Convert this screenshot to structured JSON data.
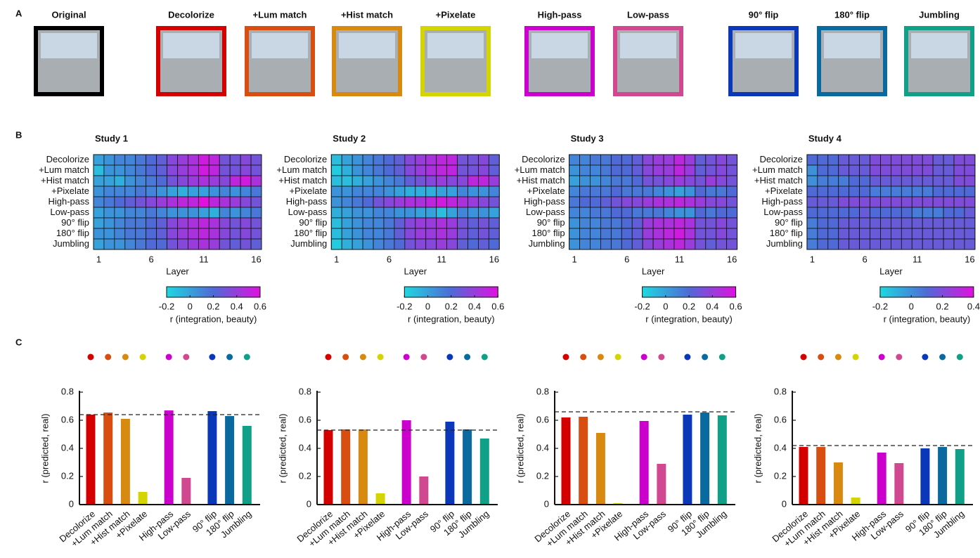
{
  "panel_labels": [
    "A",
    "B",
    "C"
  ],
  "images": [
    {
      "label": "Original",
      "color": "#000000"
    },
    {
      "label": "Decolorize",
      "color": "#d40000"
    },
    {
      "label": "+Lum match",
      "color": "#d84e10"
    },
    {
      "label": "+Hist match",
      "color": "#d88a10"
    },
    {
      "label": "+Pixelate",
      "color": "#d4d400"
    },
    {
      "label": "High-pass",
      "color": "#cc00cc"
    },
    {
      "label": "Low-pass",
      "color": "#d04890"
    },
    {
      "label": "90° flip",
      "color": "#0a38b8"
    },
    {
      "label": "180° flip",
      "color": "#0a6aa0"
    },
    {
      "label": "Jumbling",
      "color": "#10a088"
    }
  ],
  "chart_data": [
    {
      "type": "heatmap",
      "title": "Study 1",
      "xlabel": "Layer",
      "colorbar_label": "r (integration, beauty)",
      "categories": [
        "Decolorize",
        "+Lum match",
        "+Hist match",
        "+Pixelate",
        "High-pass",
        "Low-pass",
        "90° flip",
        "180° flip",
        "Jumbling"
      ],
      "x": [
        1,
        2,
        3,
        4,
        5,
        6,
        7,
        8,
        9,
        10,
        11,
        12,
        13,
        14,
        15,
        16
      ],
      "xlim": [
        0.5,
        16.5
      ],
      "xticks": [
        1,
        6,
        11,
        16
      ],
      "zlim": [
        -0.2,
        0.6
      ],
      "zticks": [
        -0.2,
        0,
        0.2,
        0.4,
        0.6
      ],
      "colormap": [
        "#1ed8e0",
        "#4f6ad6",
        "#e010e0"
      ],
      "values": [
        [
          0,
          0.05,
          0.1,
          0.1,
          0.15,
          0.2,
          0.25,
          0.35,
          0.4,
          0.45,
          0.55,
          0.5,
          0.3,
          0.3,
          0.35,
          0.3
        ],
        [
          -0.1,
          0.05,
          0.05,
          0.1,
          0.15,
          0.2,
          0.25,
          0.35,
          0.4,
          0.45,
          0.55,
          0.5,
          0.3,
          0.3,
          0.35,
          0.3
        ],
        [
          0,
          0,
          -0.05,
          0.05,
          0.1,
          0.15,
          0.2,
          0.3,
          0.35,
          0.4,
          0.45,
          0.4,
          0.35,
          0.5,
          0.55,
          0.45
        ],
        [
          0.05,
          0.1,
          0.1,
          0.1,
          0.15,
          0.1,
          0.05,
          0,
          -0.05,
          0,
          0,
          0.05,
          0.1,
          0.05,
          0.1,
          0.15
        ],
        [
          0.1,
          0.15,
          0.2,
          0.25,
          0.3,
          0.35,
          0.4,
          0.45,
          0.5,
          0.5,
          0.6,
          0.5,
          0.45,
          0.4,
          0.35,
          0.3
        ],
        [
          0,
          0.05,
          0.05,
          0.1,
          0.1,
          0.15,
          0.1,
          0.05,
          0.05,
          0.05,
          0,
          -0.05,
          0.1,
          0.05,
          0.1,
          0.15
        ],
        [
          0,
          0.05,
          0.1,
          0.15,
          0.15,
          0.2,
          0.25,
          0.35,
          0.4,
          0.45,
          0.5,
          0.45,
          0.35,
          0.3,
          0.35,
          0.3
        ],
        [
          0.05,
          0.05,
          0.1,
          0.15,
          0.15,
          0.2,
          0.25,
          0.35,
          0.4,
          0.45,
          0.5,
          0.45,
          0.35,
          0.3,
          0.35,
          0.3
        ],
        [
          0,
          0.05,
          0.05,
          0.1,
          0.15,
          0.2,
          0.2,
          0.3,
          0.35,
          0.4,
          0.45,
          0.4,
          0.3,
          0.25,
          0.3,
          0.25
        ]
      ]
    },
    {
      "type": "heatmap",
      "title": "Study 2",
      "xlabel": "Layer",
      "colorbar_label": "r (integration, beauty)",
      "categories": [
        "Decolorize",
        "+Lum match",
        "+Hist match",
        "+Pixelate",
        "High-pass",
        "Low-pass",
        "90° flip",
        "180° flip",
        "Jumbling"
      ],
      "x": [
        1,
        2,
        3,
        4,
        5,
        6,
        7,
        8,
        9,
        10,
        11,
        12,
        13,
        14,
        15,
        16
      ],
      "xlim": [
        0.5,
        16.5
      ],
      "xticks": [
        1,
        6,
        11,
        16
      ],
      "zlim": [
        -0.2,
        0.6
      ],
      "zticks": [
        -0.2,
        0,
        0.2,
        0.4,
        0.6
      ],
      "colormap": [
        "#1ed8e0",
        "#4f6ad6",
        "#e010e0"
      ],
      "values": [
        [
          -0.1,
          0,
          0.05,
          0.1,
          0.15,
          0.2,
          0.25,
          0.35,
          0.4,
          0.45,
          0.5,
          0.5,
          0.3,
          0.3,
          0.35,
          0.25
        ],
        [
          -0.15,
          -0.05,
          0.05,
          0.1,
          0.15,
          0.2,
          0.25,
          0.35,
          0.4,
          0.45,
          0.5,
          0.5,
          0.3,
          0.3,
          0.35,
          0.25
        ],
        [
          -0.1,
          -0.1,
          -0.05,
          0,
          0.05,
          0.1,
          0.15,
          0.25,
          0.3,
          0.35,
          0.4,
          0.35,
          0.35,
          0.5,
          0.5,
          0.4
        ],
        [
          0.05,
          0.05,
          0.1,
          0.1,
          0.1,
          0.05,
          0,
          -0.05,
          -0.05,
          -0.05,
          0,
          0,
          0.1,
          0.05,
          0.05,
          0.1
        ],
        [
          0.05,
          0.1,
          0.15,
          0.2,
          0.3,
          0.35,
          0.4,
          0.45,
          0.45,
          0.5,
          0.55,
          0.5,
          0.45,
          0.4,
          0.35,
          0.3
        ],
        [
          -0.05,
          0,
          0.05,
          0.05,
          0.1,
          0.1,
          0.05,
          0.05,
          0,
          0,
          -0.1,
          0,
          0.1,
          0.05,
          0.05,
          0
        ],
        [
          -0.1,
          0,
          0.05,
          0.1,
          0.1,
          0.15,
          0.25,
          0.35,
          0.4,
          0.4,
          0.45,
          0.4,
          0.3,
          0.25,
          0.3,
          0.25
        ],
        [
          -0.1,
          0,
          0.05,
          0.1,
          0.1,
          0.15,
          0.25,
          0.35,
          0.4,
          0.4,
          0.45,
          0.4,
          0.3,
          0.25,
          0.3,
          0.25
        ],
        [
          -0.15,
          -0.05,
          0,
          0.05,
          0.1,
          0.15,
          0.2,
          0.3,
          0.35,
          0.35,
          0.4,
          0.35,
          0.25,
          0.2,
          0.25,
          0.2
        ]
      ]
    },
    {
      "type": "heatmap",
      "title": "Study 3",
      "xlabel": "Layer",
      "colorbar_label": "r (integration, beauty)",
      "categories": [
        "Decolorize",
        "+Lum match",
        "+Hist match",
        "+Pixelate",
        "High-pass",
        "Low-pass",
        "90° flip",
        "180° flip",
        "Jumbling"
      ],
      "x": [
        1,
        2,
        3,
        4,
        5,
        6,
        7,
        8,
        9,
        10,
        11,
        12,
        13,
        14,
        15,
        16
      ],
      "xlim": [
        0.5,
        16.5
      ],
      "xticks": [
        1,
        6,
        11,
        16
      ],
      "zlim": [
        -0.2,
        0.6
      ],
      "zticks": [
        -0.2,
        0,
        0.2,
        0.4,
        0.6
      ],
      "colormap": [
        "#1ed8e0",
        "#4f6ad6",
        "#e010e0"
      ],
      "values": [
        [
          0.1,
          0.1,
          0.15,
          0.15,
          0.2,
          0.2,
          0.25,
          0.35,
          0.4,
          0.4,
          0.5,
          0.4,
          0.25,
          0.3,
          0.35,
          0.3
        ],
        [
          0.05,
          0.1,
          0.1,
          0.15,
          0.2,
          0.2,
          0.25,
          0.35,
          0.4,
          0.4,
          0.5,
          0.4,
          0.25,
          0.3,
          0.35,
          0.3
        ],
        [
          0,
          0.05,
          0.05,
          0.1,
          0.15,
          0.15,
          0.2,
          0.3,
          0.3,
          0.35,
          0.4,
          0.35,
          0.3,
          0.4,
          0.35,
          0.3
        ],
        [
          0.1,
          0.15,
          0.15,
          0.15,
          0.2,
          0.15,
          0.15,
          0.15,
          0.1,
          0.05,
          0,
          0.05,
          0.2,
          0.15,
          0.15,
          0.2
        ],
        [
          0.15,
          0.2,
          0.2,
          0.25,
          0.3,
          0.35,
          0.35,
          0.4,
          0.45,
          0.45,
          0.5,
          0.45,
          0.4,
          0.35,
          0.35,
          0.3
        ],
        [
          0.1,
          0.1,
          0.15,
          0.15,
          0.2,
          0.2,
          0.15,
          0.15,
          0.15,
          0.1,
          0.05,
          0.05,
          0.2,
          0.15,
          0.2,
          0.2
        ],
        [
          0.05,
          0.1,
          0.1,
          0.15,
          0.15,
          0.2,
          0.25,
          0.4,
          0.45,
          0.45,
          0.5,
          0.45,
          0.3,
          0.3,
          0.35,
          0.3
        ],
        [
          0.05,
          0.1,
          0.1,
          0.15,
          0.15,
          0.2,
          0.25,
          0.4,
          0.45,
          0.5,
          0.55,
          0.45,
          0.3,
          0.3,
          0.35,
          0.3
        ],
        [
          0.05,
          0.1,
          0.1,
          0.15,
          0.15,
          0.2,
          0.25,
          0.35,
          0.4,
          0.45,
          0.5,
          0.4,
          0.3,
          0.25,
          0.3,
          0.3
        ]
      ]
    },
    {
      "type": "heatmap",
      "title": "Study 4",
      "xlabel": "Layer",
      "colorbar_label": "r (integration, beauty)",
      "categories": [
        "Decolorize",
        "+Lum match",
        "+Hist match",
        "+Pixelate",
        "High-pass",
        "Low-pass",
        "90° flip",
        "180° flip",
        "Jumbling"
      ],
      "x": [
        1,
        2,
        3,
        4,
        5,
        6,
        7,
        8,
        9,
        10,
        11,
        12,
        13,
        14,
        15,
        16
      ],
      "xlim": [
        0.5,
        16.5
      ],
      "xticks": [
        1,
        6,
        11,
        16
      ],
      "zlim": [
        -0.2,
        0.4
      ],
      "zticks": [
        -0.2,
        0,
        0.2,
        0.4
      ],
      "colormap": [
        "#1ed8e0",
        "#4f6ad6",
        "#e010e0"
      ],
      "values": [
        [
          0.1,
          0.1,
          0.1,
          0.15,
          0.15,
          0.15,
          0.2,
          0.2,
          0.2,
          0.2,
          0.2,
          0.2,
          0.15,
          0.15,
          0.2,
          0.2
        ],
        [
          0,
          0.1,
          0.1,
          0.15,
          0.15,
          0.15,
          0.2,
          0.2,
          0.2,
          0.2,
          0.2,
          0.2,
          0.15,
          0.15,
          0.2,
          0.2
        ],
        [
          0,
          0.05,
          0.05,
          0.05,
          0.1,
          0.1,
          0.15,
          0.15,
          0.15,
          0.15,
          0.15,
          0.15,
          0.15,
          0.15,
          0.2,
          0.2
        ],
        [
          0.1,
          0.1,
          0.1,
          0.1,
          0.1,
          0.1,
          0.05,
          0.05,
          0.05,
          0.05,
          0.05,
          0.05,
          0.1,
          0.1,
          0.1,
          0.1
        ],
        [
          0.15,
          0.15,
          0.15,
          0.2,
          0.2,
          0.2,
          0.2,
          0.2,
          0.2,
          0.2,
          0.2,
          0.2,
          0.2,
          0.2,
          0.2,
          0.2
        ],
        [
          0.1,
          0.1,
          0.1,
          0.1,
          0.1,
          0.15,
          0.1,
          0.1,
          0.1,
          0.1,
          0.05,
          0.05,
          0.05,
          0.1,
          0.1,
          0.15
        ],
        [
          0.05,
          0.1,
          0.1,
          0.15,
          0.15,
          0.15,
          0.15,
          0.15,
          0.15,
          0.15,
          0.15,
          0.15,
          0.15,
          0.15,
          0.15,
          0.15
        ],
        [
          0.05,
          0.1,
          0.1,
          0.15,
          0.15,
          0.15,
          0.15,
          0.15,
          0.15,
          0.15,
          0.15,
          0.15,
          0.15,
          0.15,
          0.15,
          0.15
        ],
        [
          0.05,
          0.1,
          0.1,
          0.15,
          0.15,
          0.15,
          0.15,
          0.15,
          0.15,
          0.15,
          0.15,
          0.15,
          0.15,
          0.15,
          0.15,
          0.15
        ]
      ]
    },
    {
      "type": "bar",
      "ylabel": "r (predicted, real)",
      "categories": [
        "Decolorize",
        "+Lum match",
        "+Hist match",
        "+Pixelate",
        "High-pass",
        "Low-pass",
        "90° flip",
        "180° flip",
        "Jumbling"
      ],
      "colors": [
        "#d40000",
        "#d84e10",
        "#d88a10",
        "#d4d400",
        "#cc00cc",
        "#d04890",
        "#0a38b8",
        "#0a6aa0",
        "#10a088"
      ],
      "values": [
        0.64,
        0.655,
        0.61,
        0.09,
        0.67,
        0.19,
        0.665,
        0.63,
        0.56
      ],
      "reference_line": 0.64,
      "ylim": [
        0,
        0.8
      ],
      "yticks": [
        0,
        0.2,
        0.4,
        0.6,
        0.8
      ]
    },
    {
      "type": "bar",
      "ylabel": "r (predicted, real)",
      "categories": [
        "Decolorize",
        "+Lum match",
        "+Hist match",
        "+Pixelate",
        "High-pass",
        "Low-pass",
        "90° flip",
        "180° flip",
        "Jumbling"
      ],
      "colors": [
        "#d40000",
        "#d84e10",
        "#d88a10",
        "#d4d400",
        "#cc00cc",
        "#d04890",
        "#0a38b8",
        "#0a6aa0",
        "#10a088"
      ],
      "values": [
        0.53,
        0.535,
        0.535,
        0.08,
        0.6,
        0.2,
        0.59,
        0.535,
        0.47
      ],
      "reference_line": 0.53,
      "ylim": [
        0,
        0.8
      ],
      "yticks": [
        0,
        0.2,
        0.4,
        0.6,
        0.8
      ]
    },
    {
      "type": "bar",
      "ylabel": "r (predicted, real)",
      "categories": [
        "Decolorize",
        "+Lum match",
        "+Hist match",
        "+Pixelate",
        "High-pass",
        "Low-pass",
        "90° flip",
        "180° flip",
        "Jumbling"
      ],
      "colors": [
        "#d40000",
        "#d84e10",
        "#d88a10",
        "#d4d400",
        "#cc00cc",
        "#d04890",
        "#0a38b8",
        "#0a6aa0",
        "#10a088"
      ],
      "values": [
        0.62,
        0.625,
        0.51,
        0.01,
        0.595,
        0.29,
        0.64,
        0.655,
        0.635
      ],
      "reference_line": 0.66,
      "ylim": [
        0,
        0.8
      ],
      "yticks": [
        0,
        0.2,
        0.4,
        0.6,
        0.8
      ]
    },
    {
      "type": "bar",
      "ylabel": "r (predicted, real)",
      "categories": [
        "Decolorize",
        "+Lum match",
        "+Hist match",
        "+Pixelate",
        "High-pass",
        "Low-pass",
        "90° flip",
        "180° flip",
        "Jumbling"
      ],
      "colors": [
        "#d40000",
        "#d84e10",
        "#d88a10",
        "#d4d400",
        "#cc00cc",
        "#d04890",
        "#0a38b8",
        "#0a6aa0",
        "#10a088"
      ],
      "values": [
        0.41,
        0.41,
        0.3,
        0.05,
        0.37,
        0.295,
        0.4,
        0.41,
        0.395
      ],
      "reference_line": 0.42,
      "ylim": [
        0,
        0.8
      ],
      "yticks": [
        0,
        0.2,
        0.4,
        0.6,
        0.8
      ]
    }
  ]
}
